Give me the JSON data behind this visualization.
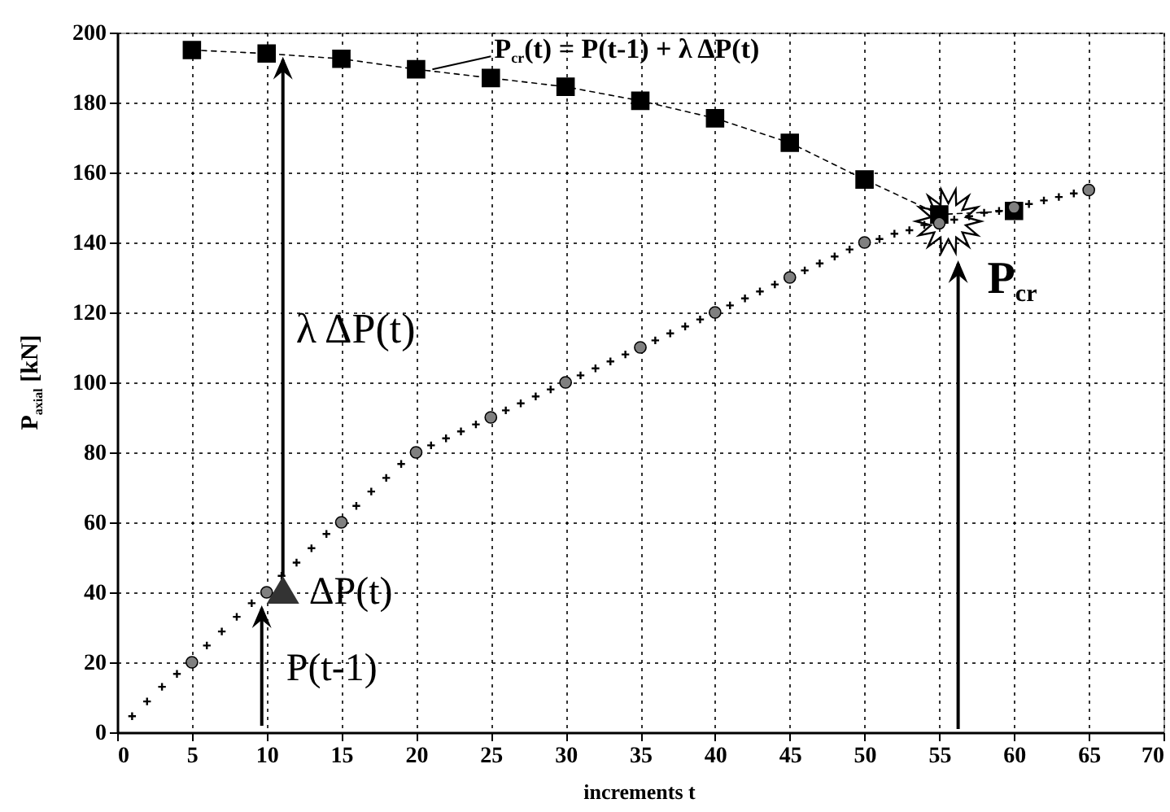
{
  "chart_data": {
    "type": "line",
    "xlabel": "increments  t",
    "ylabel": "P$_{axial}$  [kN]",
    "xlim": [
      0,
      70
    ],
    "xticks": [
      0,
      5,
      10,
      15,
      20,
      25,
      30,
      35,
      40,
      45,
      50,
      55,
      60,
      65,
      70
    ],
    "ylim": [
      0,
      200
    ],
    "yticks": [
      0,
      20,
      40,
      60,
      80,
      100,
      120,
      140,
      160,
      180,
      200
    ],
    "grid": true,
    "series": [
      {
        "type": "line",
        "marker": "square",
        "line_style": "dashed",
        "color": "#000000",
        "x": [
          5,
          10,
          15,
          20,
          25,
          30,
          35,
          40,
          45,
          50,
          55,
          60
        ],
        "values": [
          195,
          194,
          192.5,
          189.5,
          187,
          184.5,
          180.5,
          175.5,
          168.5,
          158,
          148,
          149
        ]
      },
      {
        "type": "scatter",
        "marker": "cross",
        "color": "#000000",
        "x": [
          1,
          2,
          3,
          4,
          6,
          7,
          8,
          9,
          11,
          12,
          13,
          14,
          16,
          17,
          18,
          19,
          21,
          22,
          23,
          24,
          26,
          27,
          28,
          29,
          31,
          32,
          33,
          34,
          36,
          37,
          38,
          39,
          41,
          42,
          43,
          44,
          46,
          47,
          48,
          49,
          51,
          52,
          53,
          54,
          56,
          57,
          58,
          59,
          61,
          62,
          63,
          64
        ],
        "values": [
          4.6,
          8.8,
          13,
          16.7,
          24.8,
          28.8,
          33,
          36.9,
          44.7,
          48.5,
          52.6,
          56.7,
          64.7,
          68.8,
          72.7,
          76.7,
          82,
          84,
          86,
          88,
          92,
          94,
          96,
          98,
          102,
          104,
          106,
          108,
          112,
          114,
          116,
          118,
          122,
          124,
          126,
          128,
          132,
          134,
          136,
          138,
          141,
          142.5,
          143.5,
          145,
          146.5,
          147.5,
          148.5,
          149,
          151,
          152,
          153,
          154
        ]
      },
      {
        "type": "scatter",
        "marker": "circle",
        "color": "#808080",
        "x": [
          5,
          10,
          15,
          20,
          25,
          30,
          35,
          40,
          45,
          50,
          55,
          60,
          65
        ],
        "values": [
          20,
          40,
          60,
          80,
          90,
          100,
          110,
          120,
          130,
          140,
          145.5,
          150,
          155
        ]
      }
    ],
    "annotations": [
      {
        "text": "P$_{cr}$(t) = P(t-1) + λ ΔP(t)",
        "x": 20,
        "y": 189.5
      },
      "λ ΔP(t)",
      {
        "text": "ΔP(t)",
        "x": 10,
        "y": 40
      },
      {
        "text": "P(t-1)",
        "x": 10,
        "y": 40
      },
      {
        "text": "P$_{cr}$",
        "x": 55.5,
        "y": 147
      }
    ]
  }
}
